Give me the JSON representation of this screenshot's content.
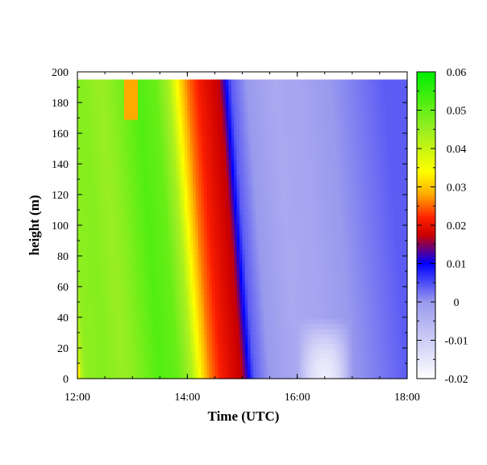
{
  "chart_data": {
    "type": "heatmap",
    "title": "",
    "xlabel": "Time (UTC)",
    "ylabel": "height (m)",
    "x": {
      "range": [
        "12:00",
        "18:00"
      ],
      "ticks": [
        "12:00",
        "14:00",
        "16:00",
        "18:00"
      ],
      "data_extent": [
        "12:00",
        "18:00"
      ]
    },
    "y": {
      "range": [
        0,
        200
      ],
      "ticks": [
        0,
        20,
        40,
        60,
        80,
        100,
        120,
        140,
        160,
        180,
        200
      ],
      "data_extent": [
        0,
        195
      ]
    },
    "colorbar": {
      "range": [
        -0.02,
        0.06
      ],
      "ticks": [
        -0.02,
        -0.01,
        0,
        0.01,
        0.02,
        0.03,
        0.04,
        0.05,
        0.06
      ],
      "tick_labels": [
        "-0.02",
        "-0.01",
        "0",
        "0.01",
        "0.02",
        "0.03",
        "0.04",
        "0.05",
        "0.06"
      ],
      "colormap": [
        {
          "value": -0.02,
          "color": "#ffffff"
        },
        {
          "value": 0.0,
          "color": "#9a9aee"
        },
        {
          "value": 0.01,
          "color": "#0000ff"
        },
        {
          "value": 0.0175,
          "color": "#cc0000"
        },
        {
          "value": 0.022,
          "color": "#ff2200"
        },
        {
          "value": 0.028,
          "color": "#ffaa00"
        },
        {
          "value": 0.034,
          "color": "#ffff00"
        },
        {
          "value": 0.045,
          "color": "#99ee22"
        },
        {
          "value": 0.06,
          "color": "#00ee00"
        }
      ]
    },
    "time_profile": [
      {
        "t": "12:00",
        "v": 0.036
      },
      {
        "t": "12:03",
        "v": 0.041
      },
      {
        "t": "12:10",
        "v": 0.046
      },
      {
        "t": "12:30",
        "v": 0.047
      },
      {
        "t": "12:50",
        "v": 0.045
      },
      {
        "t": "13:00",
        "v": 0.046
      },
      {
        "t": "13:30",
        "v": 0.052
      },
      {
        "t": "13:50",
        "v": 0.05
      },
      {
        "t": "14:05",
        "v": 0.043
      },
      {
        "t": "14:15",
        "v": 0.033
      },
      {
        "t": "14:25",
        "v": 0.026
      },
      {
        "t": "14:38",
        "v": 0.021
      },
      {
        "t": "14:48",
        "v": 0.019
      },
      {
        "t": "15:00",
        "v": 0.017
      },
      {
        "t": "15:07",
        "v": 0.01
      },
      {
        "t": "15:13",
        "v": 0.004
      },
      {
        "t": "15:30",
        "v": 0.0
      },
      {
        "t": "16:00",
        "v": -0.003
      },
      {
        "t": "16:30",
        "v": -0.002
      },
      {
        "t": "17:00",
        "v": 0.0
      },
      {
        "t": "17:30",
        "v": 0.002
      },
      {
        "t": "18:00",
        "v": 0.004
      }
    ],
    "transition_shift_h": {
      "height_m": [
        0,
        195
      ],
      "shift_h": [
        0,
        -0.42
      ]
    },
    "surface_warm_patch": {
      "time": [
        "16:00",
        "17:00"
      ],
      "height_m": [
        0,
        40
      ],
      "value_min": -0.018
    },
    "top_orange_patch": {
      "time": [
        "12:50",
        "13:05"
      ],
      "height_m": [
        170,
        195
      ],
      "value": 0.028
    }
  }
}
